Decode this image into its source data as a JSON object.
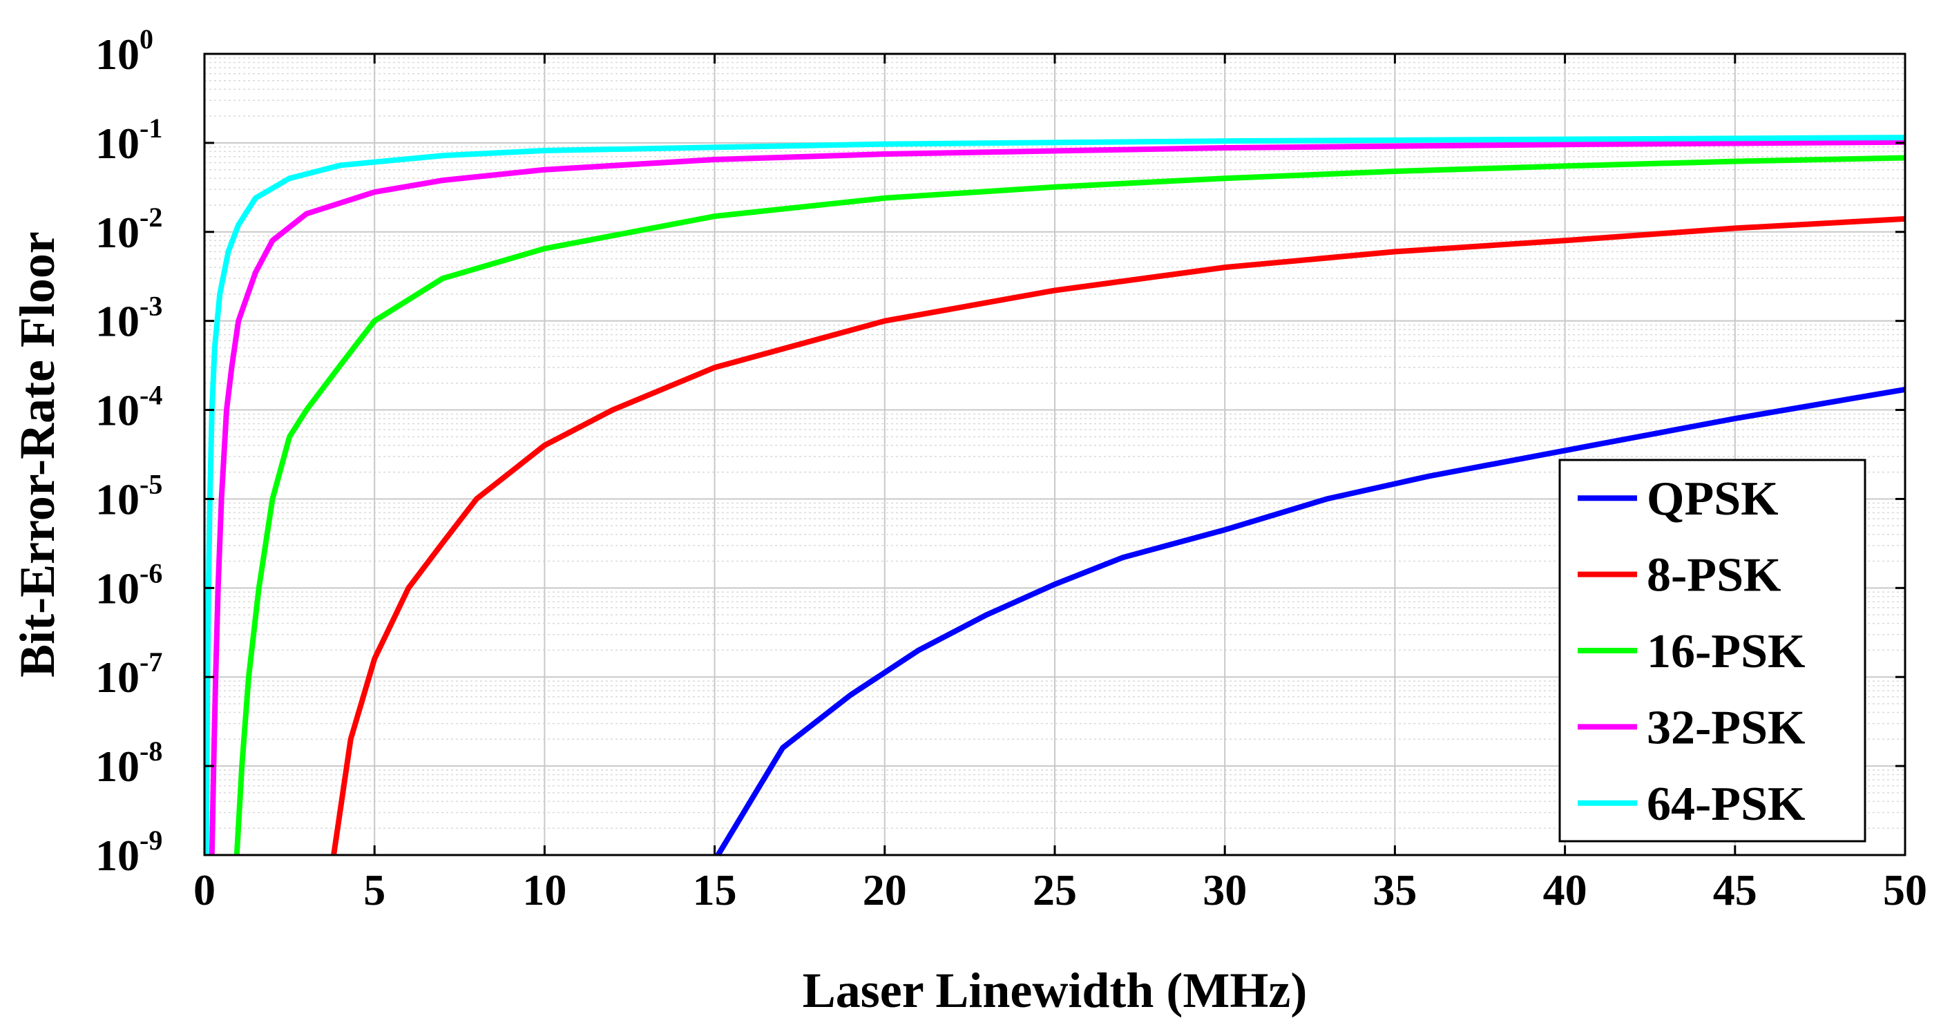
{
  "chart_data": {
    "type": "line",
    "title": "",
    "xlabel": "Laser Linewidth (MHz)",
    "ylabel": "Bit-Error-Rate Floor",
    "xscale": "linear",
    "yscale": "log",
    "xlim": [
      0,
      50
    ],
    "ylim": [
      1e-09,
      1
    ],
    "x_ticks": [
      0,
      5,
      10,
      15,
      20,
      25,
      30,
      35,
      40,
      45,
      50
    ],
    "x_tick_labels": [
      "0",
      "5",
      "10",
      "15",
      "20",
      "25",
      "30",
      "35",
      "40",
      "45",
      "50"
    ],
    "y_ticks": [
      {
        "base": "10",
        "exp": "0"
      },
      {
        "base": "10",
        "exp": "-1"
      },
      {
        "base": "10",
        "exp": "-2"
      },
      {
        "base": "10",
        "exp": "-3"
      },
      {
        "base": "10",
        "exp": "-4"
      },
      {
        "base": "10",
        "exp": "-5"
      },
      {
        "base": "10",
        "exp": "-6"
      },
      {
        "base": "10",
        "exp": "-7"
      },
      {
        "base": "10",
        "exp": "-8"
      },
      {
        "base": "10",
        "exp": "-9"
      }
    ],
    "grid": true,
    "minor_grid": true,
    "legend_position": "bottom-right",
    "series": [
      {
        "name": "QPSK",
        "color": "#0000ff",
        "x": [
          15.1,
          17,
          19,
          21,
          23,
          25,
          27,
          30,
          33,
          36,
          40,
          45,
          50
        ],
        "y": [
          1e-09,
          1.6e-08,
          6.3e-08,
          2e-07,
          5e-07,
          1.1e-06,
          2.2e-06,
          4.5e-06,
          1e-05,
          1.8e-05,
          3.5e-05,
          8e-05,
          0.00017
        ]
      },
      {
        "name": "8-PSK",
        "color": "#ff0000",
        "x": [
          3.8,
          4.3,
          5,
          6,
          7,
          8,
          9,
          10,
          12,
          15,
          20,
          25,
          30,
          35,
          40,
          45,
          50
        ],
        "y": [
          1e-09,
          2e-08,
          1.6e-07,
          1e-06,
          3.2e-06,
          1e-05,
          2e-05,
          4e-05,
          0.0001,
          0.0003,
          0.001,
          0.0022,
          0.004,
          0.006,
          0.008,
          0.011,
          0.014
        ]
      },
      {
        "name": "16-PSK",
        "color": "#00ff00",
        "x": [
          0.95,
          1.1,
          1.3,
          1.6,
          2,
          2.5,
          3,
          4,
          5,
          7,
          10,
          15,
          20,
          25,
          30,
          35,
          40,
          45,
          50
        ],
        "y": [
          1e-09,
          1e-08,
          1e-07,
          1e-06,
          1e-05,
          5e-05,
          0.0001,
          0.00032,
          0.001,
          0.003,
          0.0065,
          0.015,
          0.024,
          0.032,
          0.04,
          0.048,
          0.055,
          0.062,
          0.068
        ]
      },
      {
        "name": "32-PSK",
        "color": "#ff00ff",
        "x": [
          0.22,
          0.27,
          0.33,
          0.4,
          0.5,
          0.65,
          0.8,
          1,
          1.5,
          2,
          3,
          5,
          7,
          10,
          15,
          20,
          30,
          40,
          50
        ],
        "y": [
          1e-09,
          1e-08,
          1e-07,
          1e-06,
          1e-05,
          0.0001,
          0.0003,
          0.001,
          0.0035,
          0.008,
          0.016,
          0.028,
          0.038,
          0.05,
          0.065,
          0.075,
          0.088,
          0.096,
          0.102
        ]
      },
      {
        "name": "64-PSK",
        "color": "#00ffff",
        "x": [
          0.05,
          0.07,
          0.09,
          0.12,
          0.16,
          0.22,
          0.3,
          0.45,
          0.7,
          1,
          1.5,
          2.5,
          4,
          7,
          10,
          20,
          30,
          40,
          50
        ],
        "y": [
          1e-09,
          1e-08,
          1e-07,
          1e-06,
          1e-05,
          0.0001,
          0.0005,
          0.002,
          0.006,
          0.012,
          0.024,
          0.04,
          0.056,
          0.072,
          0.082,
          0.097,
          0.105,
          0.11,
          0.115
        ]
      }
    ]
  }
}
